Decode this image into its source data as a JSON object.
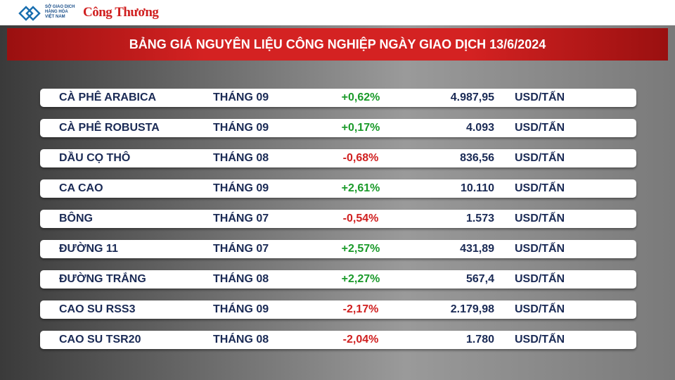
{
  "header": {
    "logo_lines": [
      "SỞ GIAO DỊCH",
      "HÀNG HÓA",
      "VIỆT NAM"
    ],
    "brand": "Công Thương",
    "title": "BẢNG GIÁ NGUYÊN LIỆU CÔNG NGHIỆP NGÀY GIAO DỊCH 13/6/2024"
  },
  "table": {
    "rows": [
      [
        "CÀ PHÊ ARABICA",
        "THÁNG 09",
        "+0,62%",
        "4.987,95",
        "USD/TẤN"
      ],
      [
        "CÀ PHÊ ROBUSTA",
        "THÁNG 09",
        "+0,17%",
        "4.093",
        "USD/TẤN"
      ],
      [
        "DẦU CỌ THÔ",
        "THÁNG 08",
        "-0,68%",
        "836,56",
        "USD/TẤN"
      ],
      [
        "CA CAO",
        "THÁNG 09",
        "+2,61%",
        "10.110",
        "USD/TẤN"
      ],
      [
        "BÔNG",
        "THÁNG 07",
        "-0,54%",
        "1.573",
        "USD/TẤN"
      ],
      [
        "ĐƯỜNG 11",
        "THÁNG 07",
        "+2,57%",
        "431,89",
        "USD/TẤN"
      ],
      [
        "ĐƯỜNG TRẮNG",
        "THÁNG 08",
        "+2,27%",
        "567,4",
        "USD/TẤN"
      ],
      [
        "CAO SU RSS3",
        "THÁNG 09",
        "-2,17%",
        "2.179,98",
        "USD/TẤN"
      ],
      [
        "CAO SU TSR20",
        "THÁNG 08",
        "-2,04%",
        "1.780",
        "USD/TẤN"
      ]
    ]
  }
}
